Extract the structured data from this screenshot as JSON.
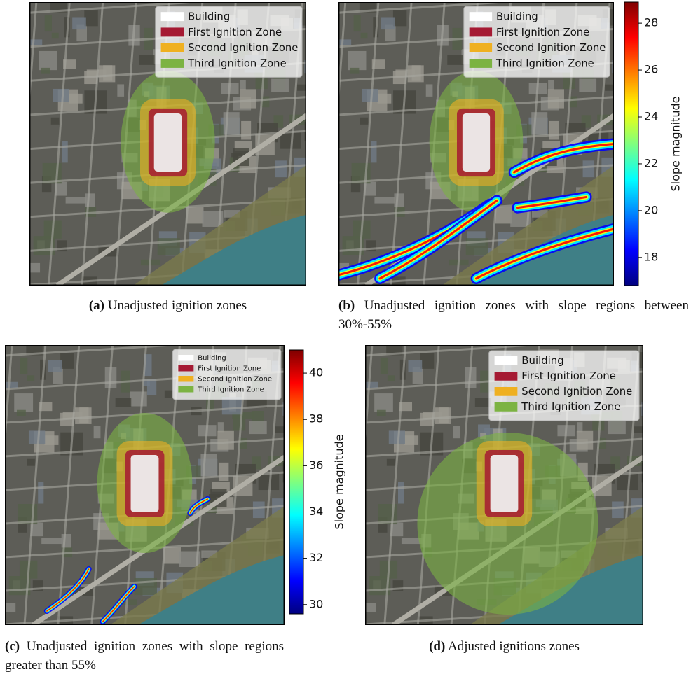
{
  "panels": [
    {
      "label": "(a)",
      "caption": "Unadjusted ignition zones",
      "legend": [
        {
          "label": "Building",
          "color": "#ffffff"
        },
        {
          "label": "First Ignition Zone",
          "color": "#a51a33"
        },
        {
          "label": "Second Ignition Zone",
          "color": "#efb021"
        },
        {
          "label": "Third Ignition Zone",
          "color": "#7cb342"
        }
      ]
    },
    {
      "label": "(b)",
      "caption": "Unadjusted ignition zones with slope regions between 30%-55%",
      "legend": [
        {
          "label": "Building",
          "color": "#ffffff"
        },
        {
          "label": "First Ignition Zone",
          "color": "#a51a33"
        },
        {
          "label": "Second Ignition Zone",
          "color": "#efb021"
        },
        {
          "label": "Third Ignition Zone",
          "color": "#7cb342"
        }
      ],
      "colorbar": {
        "label": "Slope magnitude",
        "lim": [
          16.8,
          28.9
        ],
        "ticks": [
          18,
          20,
          22,
          24,
          26,
          28
        ]
      }
    },
    {
      "label": "(c)",
      "caption": "Unadjusted ignition zones with slope regions greater than 55%",
      "legend": [
        {
          "label": "Building",
          "color": "#ffffff"
        },
        {
          "label": "First Ignition Zone",
          "color": "#a51a33"
        },
        {
          "label": "Second Ignition Zone",
          "color": "#efb021"
        },
        {
          "label": "Third Ignition Zone",
          "color": "#7cb342"
        }
      ],
      "colorbar": {
        "label": "Slope magnitude",
        "lim": [
          29.6,
          41.0
        ],
        "ticks": [
          30,
          32,
          34,
          36,
          38,
          40
        ]
      }
    },
    {
      "label": "(d)",
      "caption": "Adjusted ignitions zones",
      "legend": [
        {
          "label": "Building",
          "color": "#ffffff"
        },
        {
          "label": "First Ignition Zone",
          "color": "#a51a33"
        },
        {
          "label": "Second Ignition Zone",
          "color": "#efb021"
        },
        {
          "label": "Third Ignition Zone",
          "color": "#7cb342"
        }
      ]
    }
  ]
}
